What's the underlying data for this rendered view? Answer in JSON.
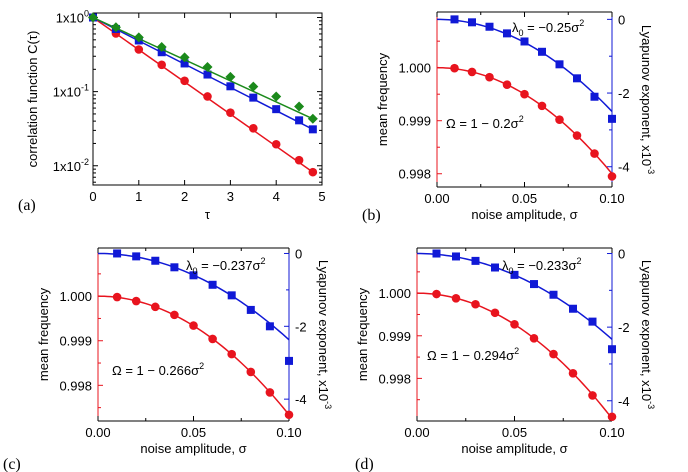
{
  "figure": {
    "panel_labels": [
      "(a)",
      "(b)",
      "(c)",
      "(d)"
    ]
  },
  "colors": {
    "red": "#e8141e",
    "blue": "#1019d6",
    "green": "#1b8a1b"
  },
  "chart_data": [
    {
      "type": "line",
      "panel": "(a)",
      "xlabel": "τ",
      "ylabel": "correlation function C(τ)",
      "xlim": [
        0,
        5
      ],
      "ylim": [
        0.0055,
        1.15
      ],
      "yscale": "log",
      "xticks": [
        0,
        1,
        2,
        3,
        4,
        5
      ],
      "xtick_labels": [
        "0",
        "1",
        "2",
        "3",
        "4",
        "5"
      ],
      "yticks": [
        1,
        0.1,
        0.01
      ],
      "ytick_labels": [
        {
          "base": "1x10",
          "exp": "0"
        },
        {
          "base": "1x10",
          "exp": "-1"
        },
        {
          "base": "1x10",
          "exp": "-2"
        }
      ],
      "series": [
        {
          "color": "red",
          "marker": "circle",
          "x": [
            0,
            0.5,
            1,
            1.5,
            2,
            2.5,
            3,
            3.5,
            4,
            4.5,
            4.8
          ],
          "y": [
            1,
            0.61,
            0.37,
            0.23,
            0.14,
            0.086,
            0.052,
            0.032,
            0.0195,
            0.0119,
            0.0082
          ],
          "fit_x": [
            0,
            4.8
          ],
          "fit_y": [
            1,
            0.0082
          ]
        },
        {
          "color": "blue",
          "marker": "square",
          "x": [
            0,
            0.5,
            1,
            1.5,
            2,
            2.5,
            3,
            3.5,
            4,
            4.5,
            4.8
          ],
          "y": [
            1,
            0.7,
            0.49,
            0.34,
            0.24,
            0.17,
            0.118,
            0.083,
            0.058,
            0.041,
            0.031
          ],
          "fit_x": [
            0,
            4.8
          ],
          "fit_y": [
            1,
            0.031
          ]
        },
        {
          "color": "green",
          "marker": "diamond",
          "x": [
            0,
            0.5,
            1,
            1.5,
            2,
            2.5,
            3,
            3.5,
            4,
            4.5,
            4.8
          ],
          "y": [
            1,
            0.74,
            0.54,
            0.4,
            0.29,
            0.215,
            0.158,
            0.117,
            0.086,
            0.063,
            0.043
          ],
          "fit_x": [
            0,
            4.8
          ],
          "fit_y": [
            1,
            0.043
          ]
        }
      ]
    },
    {
      "type": "scatter",
      "panel": "(b)",
      "xlabel": "noise amplitude, σ",
      "ylabel_left": "mean frequency",
      "ylabel_right": "Lyapunov exponent, x10",
      "ylabel_right_exp": "-3",
      "xlim": [
        0,
        0.1
      ],
      "ylim_left": [
        0.99775,
        1.00105
      ],
      "ylim_right": [
        -4.55,
        0.2
      ],
      "xticks": [
        0,
        0.05,
        0.1
      ],
      "xtick_labels": [
        "0.00",
        "0.05",
        "0.10"
      ],
      "yticks_left": [
        0.998,
        0.999,
        1.0
      ],
      "ytick_labels_left": [
        "0.998",
        "0.999",
        "1.000"
      ],
      "yticks_right": [
        0,
        -2,
        -4
      ],
      "ytick_labels_right": [
        "0",
        "-2",
        "-4"
      ],
      "annotation_freq": "Ω = 1 − 0.2σ",
      "annotation_lyap": "λ  = −0.25σ",
      "annotation_lyap_sub": "0",
      "annotation_sup": "2",
      "freq_coef": 0.2,
      "lyap_coef": -0.25,
      "freq_points": {
        "x": [
          0.01,
          0.02,
          0.03,
          0.04,
          0.05,
          0.06,
          0.07,
          0.08,
          0.09,
          0.1
        ],
        "y": [
          0.99999,
          0.99992,
          0.99982,
          0.99968,
          0.9995,
          0.99928,
          0.99902,
          0.99872,
          0.99838,
          0.99795
        ]
      },
      "lyap_points": {
        "x": [
          0.01,
          0.02,
          0.03,
          0.04,
          0.05,
          0.06,
          0.07,
          0.08,
          0.09,
          0.1
        ],
        "y": [
          0.0,
          -0.08,
          -0.2,
          -0.38,
          -0.6,
          -0.88,
          -1.22,
          -1.6,
          -2.1,
          -2.7
        ]
      }
    },
    {
      "type": "scatter",
      "panel": "(c)",
      "xlabel": "noise amplitude, σ",
      "ylabel_left": "mean frequency",
      "ylabel_right": "Lyapunov exponent, x10",
      "ylabel_right_exp": "-3",
      "xlim": [
        0,
        0.1
      ],
      "ylim_left": [
        0.9972,
        1.00108
      ],
      "ylim_right": [
        -4.6,
        0.15
      ],
      "xticks": [
        0,
        0.05,
        0.1
      ],
      "xtick_labels": [
        "0.00",
        "0.05",
        "0.10"
      ],
      "yticks_left": [
        0.998,
        0.999,
        1.0
      ],
      "ytick_labels_left": [
        "0.998",
        "0.999",
        "1.000"
      ],
      "yticks_right": [
        0,
        -2,
        -4
      ],
      "ytick_labels_right": [
        "0",
        "-2",
        "-4"
      ],
      "annotation_freq": "Ω = 1 − 0.266σ",
      "annotation_lyap": "λ  = −0.237σ",
      "annotation_lyap_sub": "0",
      "annotation_sup": "2",
      "freq_coef": 0.266,
      "lyap_coef": -0.237,
      "freq_points": {
        "x": [
          0.01,
          0.02,
          0.03,
          0.04,
          0.05,
          0.06,
          0.07,
          0.08,
          0.09,
          0.1
        ],
        "y": [
          0.99998,
          0.99989,
          0.99976,
          0.99958,
          0.99934,
          0.99904,
          0.9987,
          0.9983,
          0.99784,
          0.99734
        ]
      },
      "lyap_points": {
        "x": [
          0.01,
          0.02,
          0.03,
          0.04,
          0.05,
          0.06,
          0.07,
          0.08,
          0.09,
          0.1
        ],
        "y": [
          0.0,
          -0.08,
          -0.2,
          -0.38,
          -0.6,
          -0.86,
          -1.15,
          -1.55,
          -2.0,
          -2.95
        ]
      }
    },
    {
      "type": "scatter",
      "panel": "(d)",
      "xlabel": "noise amplitude, σ",
      "ylabel_left": "mean frequency",
      "ylabel_right": "Lyapunov exponent, x10",
      "ylabel_right_exp": "-3",
      "xlim": [
        0,
        0.1
      ],
      "ylim_left": [
        0.997,
        1.00106
      ],
      "ylim_right": [
        -4.55,
        0.15
      ],
      "xticks": [
        0,
        0.05,
        0.1
      ],
      "xtick_labels": [
        "0.00",
        "0.05",
        "0.10"
      ],
      "yticks_left": [
        0.998,
        0.999,
        1.0
      ],
      "ytick_labels_left": [
        "0.998",
        "0.999",
        "1.000"
      ],
      "yticks_right": [
        0,
        -2,
        -4
      ],
      "ytick_labels_right": [
        "0",
        "-2",
        "-4"
      ],
      "annotation_freq": "Ω = 1 − 0.294σ",
      "annotation_lyap": "λ  = −0.233σ",
      "annotation_lyap_sub": "0",
      "annotation_sup": "2",
      "freq_coef": 0.294,
      "lyap_coef": -0.233,
      "freq_points": {
        "x": [
          0.01,
          0.02,
          0.03,
          0.04,
          0.05,
          0.06,
          0.07,
          0.08,
          0.09,
          0.1
        ],
        "y": [
          0.99998,
          0.99988,
          0.99974,
          0.99954,
          0.99927,
          0.99894,
          0.99857,
          0.99812,
          0.9976,
          0.9971
        ]
      },
      "lyap_points": {
        "x": [
          0.01,
          0.02,
          0.03,
          0.04,
          0.05,
          0.06,
          0.07,
          0.08,
          0.09,
          0.1
        ],
        "y": [
          0.0,
          -0.08,
          -0.2,
          -0.38,
          -0.58,
          -0.83,
          -1.12,
          -1.5,
          -1.85,
          -2.6
        ]
      }
    }
  ]
}
